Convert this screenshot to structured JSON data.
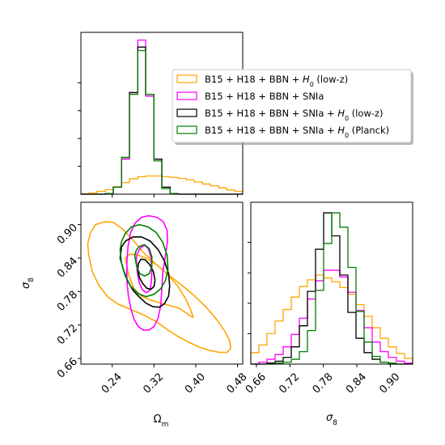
{
  "chart_data": {
    "type": "corner",
    "colors": {
      "lowz": "#ffa500",
      "snia": "#ff00ff",
      "snia_lowz": "#000000",
      "snia_planck": "#008000"
    },
    "legend": {
      "placement": "upper right of top panel",
      "entries": [
        {
          "key": "lowz",
          "pre": "B15 + H18 + BBN + ",
          "math": "H",
          "sub": "0",
          "post": " (low-z)"
        },
        {
          "key": "snia",
          "pre": "B15 + H18 + BBN + SNIa",
          "math": "",
          "sub": "",
          "post": ""
        },
        {
          "key": "snia_lowz",
          "pre": "B15 + H18 + BBN + SNIa + ",
          "math": "H",
          "sub": "0",
          "post": " (low-z)"
        },
        {
          "key": "snia_planck",
          "pre": "B15 + H18 + BBN + SNIa + ",
          "math": "H",
          "sub": "0",
          "post": " (Planck)"
        }
      ]
    },
    "axes": {
      "om": {
        "label_main": "Ω",
        "label_sub": "m",
        "range": [
          0.18,
          0.49
        ],
        "ticks": [
          "0.24",
          "0.32",
          "0.40",
          "0.48"
        ]
      },
      "s8": {
        "label_main": "σ",
        "label_sub": "8",
        "range": [
          0.65,
          0.94
        ],
        "ticks_x": [
          "0.66",
          "0.72",
          "0.78",
          "0.84",
          "0.90"
        ],
        "ticks_y": [
          "0.66",
          "0.72",
          "0.78",
          "0.84",
          "0.90"
        ]
      }
    },
    "hist_om": {
      "bins": [
        0.18,
        0.196,
        0.211,
        0.227,
        0.242,
        0.258,
        0.273,
        0.289,
        0.304,
        0.32,
        0.335,
        0.351,
        0.366,
        0.382,
        0.397,
        0.413,
        0.428,
        0.444,
        0.459,
        0.475,
        0.49
      ],
      "series": [
        {
          "key": "lowz",
          "values": [
            0.1,
            0.4,
            0.8,
            1.3,
            2.1,
            3.3,
            4.4,
            5.0,
            5.2,
            5.2,
            5.0,
            4.8,
            4.5,
            4.1,
            3.5,
            2.9,
            2.4,
            1.8,
            1.2,
            0.8
          ]
        },
        {
          "key": "snia",
          "values": [
            0.0,
            0.0,
            0.0,
            0.2,
            2.0,
            10.0,
            29.0,
            44.0,
            28.0,
            10.0,
            2.0,
            0.2,
            0.0,
            0.0,
            0.0,
            0.0,
            0.0,
            0.0,
            0.0,
            0.0
          ]
        },
        {
          "key": "snia_lowz",
          "values": [
            0.0,
            0.0,
            0.0,
            0.2,
            2.0,
            10.5,
            29.0,
            42.0,
            28.5,
            10.0,
            2.0,
            0.2,
            0.0,
            0.0,
            0.0,
            0.0,
            0.0,
            0.0,
            0.0,
            0.0
          ]
        },
        {
          "key": "snia_planck",
          "values": [
            0.0,
            0.0,
            0.0,
            0.2,
            2.0,
            10.5,
            28.5,
            41.0,
            28.5,
            9.5,
            1.6,
            0.2,
            0.0,
            0.0,
            0.0,
            0.0,
            0.0,
            0.0,
            0.0,
            0.0
          ]
        }
      ]
    },
    "hist_s8": {
      "bins": [
        0.65,
        0.6645,
        0.679,
        0.6935,
        0.708,
        0.7225,
        0.737,
        0.7515,
        0.766,
        0.7805,
        0.795,
        0.8095,
        0.824,
        0.8385,
        0.853,
        0.8675,
        0.882,
        0.8965,
        0.911,
        0.9255,
        0.94
      ],
      "series": [
        {
          "key": "lowz",
          "values": [
            1.2,
            2.0,
            3.2,
            4.5,
            5.7,
            7.0,
            8.1,
            8.8,
            9.3,
            9.0,
            8.6,
            8.0,
            7.3,
            6.2,
            5.0,
            3.8,
            2.7,
            1.8,
            1.1,
            0.6
          ]
        },
        {
          "key": "snia",
          "values": [
            0.0,
            0.2,
            0.5,
            1.0,
            1.8,
            3.1,
            4.8,
            6.8,
            8.7,
            9.8,
            9.8,
            9.1,
            7.5,
            5.6,
            3.8,
            2.3,
            1.3,
            0.7,
            0.3,
            0.1
          ]
        },
        {
          "key": "snia_lowz",
          "values": [
            0.0,
            0.0,
            0.1,
            0.3,
            0.7,
            1.8,
            4.0,
            7.6,
            12.0,
            15.8,
            13.4,
            9.3,
            5.4,
            2.7,
            1.2,
            0.5,
            0.2,
            0.0,
            0.0,
            0.0
          ]
        },
        {
          "key": "snia_planck",
          "values": [
            0.0,
            0.0,
            0.0,
            0.1,
            0.2,
            0.5,
            1.3,
            3.5,
            7.7,
            12.6,
            15.8,
            14.3,
            10.1,
            5.5,
            2.3,
            0.8,
            0.2,
            0.1,
            0.0,
            0.0
          ]
        }
      ]
    },
    "contours": [
      {
        "key": "lowz",
        "level": "outer",
        "points": [
          [
            0.195,
            0.845
          ],
          [
            0.202,
            0.815
          ],
          [
            0.215,
            0.79
          ],
          [
            0.232,
            0.77
          ],
          [
            0.25,
            0.758
          ],
          [
            0.275,
            0.748
          ],
          [
            0.3,
            0.738
          ],
          [
            0.325,
            0.726
          ],
          [
            0.345,
            0.712
          ],
          [
            0.365,
            0.7
          ],
          [
            0.385,
            0.69
          ],
          [
            0.405,
            0.681
          ],
          [
            0.425,
            0.675
          ],
          [
            0.445,
            0.671
          ],
          [
            0.46,
            0.671
          ],
          [
            0.467,
            0.678
          ],
          [
            0.465,
            0.692
          ],
          [
            0.455,
            0.71
          ],
          [
            0.44,
            0.73
          ],
          [
            0.42,
            0.752
          ],
          [
            0.398,
            0.772
          ],
          [
            0.375,
            0.79
          ],
          [
            0.35,
            0.808
          ],
          [
            0.325,
            0.828
          ],
          [
            0.3,
            0.85
          ],
          [
            0.28,
            0.872
          ],
          [
            0.26,
            0.892
          ],
          [
            0.242,
            0.904
          ],
          [
            0.225,
            0.905
          ],
          [
            0.208,
            0.9
          ],
          [
            0.198,
            0.885
          ],
          [
            0.193,
            0.865
          ]
        ]
      },
      {
        "key": "lowz",
        "level": "inner",
        "points": [
          [
            0.265,
            0.84
          ],
          [
            0.272,
            0.808
          ],
          [
            0.282,
            0.785
          ],
          [
            0.296,
            0.772
          ],
          [
            0.312,
            0.765
          ],
          [
            0.33,
            0.76
          ],
          [
            0.35,
            0.755
          ],
          [
            0.368,
            0.75
          ],
          [
            0.383,
            0.741
          ],
          [
            0.39,
            0.736
          ],
          [
            0.395,
            0.734
          ],
          [
            0.39,
            0.748
          ],
          [
            0.38,
            0.768
          ],
          [
            0.365,
            0.79
          ],
          [
            0.345,
            0.812
          ],
          [
            0.325,
            0.828
          ],
          [
            0.305,
            0.84
          ],
          [
            0.288,
            0.846
          ],
          [
            0.274,
            0.847
          ]
        ]
      },
      {
        "key": "snia",
        "level": "outer",
        "points": [
          [
            0.268,
            0.8
          ],
          [
            0.271,
            0.772
          ],
          [
            0.276,
            0.748
          ],
          [
            0.282,
            0.73
          ],
          [
            0.29,
            0.717
          ],
          [
            0.3,
            0.711
          ],
          [
            0.31,
            0.711
          ],
          [
            0.32,
            0.717
          ],
          [
            0.328,
            0.733
          ],
          [
            0.333,
            0.755
          ],
          [
            0.335,
            0.785
          ],
          [
            0.337,
            0.815
          ],
          [
            0.342,
            0.845
          ],
          [
            0.346,
            0.87
          ],
          [
            0.345,
            0.89
          ],
          [
            0.338,
            0.905
          ],
          [
            0.326,
            0.913
          ],
          [
            0.31,
            0.916
          ],
          [
            0.296,
            0.913
          ],
          [
            0.284,
            0.903
          ],
          [
            0.275,
            0.885
          ],
          [
            0.27,
            0.86
          ],
          [
            0.268,
            0.83
          ]
        ]
      },
      {
        "key": "snia",
        "level": "inner",
        "points": [
          [
            0.286,
            0.836
          ],
          [
            0.288,
            0.815
          ],
          [
            0.292,
            0.795
          ],
          [
            0.298,
            0.783
          ],
          [
            0.305,
            0.778
          ],
          [
            0.312,
            0.782
          ],
          [
            0.315,
            0.797
          ],
          [
            0.316,
            0.82
          ],
          [
            0.314,
            0.842
          ],
          [
            0.309,
            0.857
          ],
          [
            0.302,
            0.863
          ],
          [
            0.294,
            0.858
          ],
          [
            0.288,
            0.848
          ]
        ]
      },
      {
        "key": "snia_lowz",
        "level": "outer",
        "points": [
          [
            0.255,
            0.84
          ],
          [
            0.262,
            0.818
          ],
          [
            0.27,
            0.798
          ],
          [
            0.28,
            0.782
          ],
          [
            0.292,
            0.77
          ],
          [
            0.305,
            0.759
          ],
          [
            0.318,
            0.753
          ],
          [
            0.33,
            0.752
          ],
          [
            0.34,
            0.758
          ],
          [
            0.348,
            0.772
          ],
          [
            0.35,
            0.79
          ],
          [
            0.348,
            0.812
          ],
          [
            0.34,
            0.835
          ],
          [
            0.328,
            0.855
          ],
          [
            0.312,
            0.871
          ],
          [
            0.296,
            0.878
          ],
          [
            0.28,
            0.878
          ],
          [
            0.266,
            0.871
          ],
          [
            0.258,
            0.86
          ]
        ]
      },
      {
        "key": "snia_lowz",
        "level": "inner",
        "points": [
          [
            0.289,
            0.818
          ],
          [
            0.292,
            0.805
          ],
          [
            0.298,
            0.795
          ],
          [
            0.306,
            0.786
          ],
          [
            0.314,
            0.784
          ],
          [
            0.32,
            0.789
          ],
          [
            0.322,
            0.8
          ],
          [
            0.319,
            0.815
          ],
          [
            0.312,
            0.828
          ],
          [
            0.303,
            0.837
          ],
          [
            0.295,
            0.838
          ],
          [
            0.29,
            0.83
          ]
        ]
      },
      {
        "key": "snia_planck",
        "level": "outer",
        "points": [
          [
            0.255,
            0.855
          ],
          [
            0.258,
            0.83
          ],
          [
            0.265,
            0.808
          ],
          [
            0.275,
            0.79
          ],
          [
            0.29,
            0.776
          ],
          [
            0.305,
            0.771
          ],
          [
            0.32,
            0.775
          ],
          [
            0.333,
            0.785
          ],
          [
            0.342,
            0.8
          ],
          [
            0.347,
            0.82
          ],
          [
            0.345,
            0.845
          ],
          [
            0.337,
            0.868
          ],
          [
            0.324,
            0.886
          ],
          [
            0.308,
            0.896
          ],
          [
            0.292,
            0.9
          ],
          [
            0.277,
            0.896
          ],
          [
            0.265,
            0.884
          ],
          [
            0.258,
            0.87
          ]
        ]
      },
      {
        "key": "snia_planck",
        "level": "inner",
        "points": [
          [
            0.283,
            0.845
          ],
          [
            0.287,
            0.825
          ],
          [
            0.293,
            0.812
          ],
          [
            0.302,
            0.808
          ],
          [
            0.311,
            0.812
          ],
          [
            0.316,
            0.825
          ],
          [
            0.316,
            0.842
          ],
          [
            0.311,
            0.857
          ],
          [
            0.302,
            0.864
          ],
          [
            0.292,
            0.861
          ],
          [
            0.286,
            0.854
          ]
        ]
      }
    ]
  }
}
